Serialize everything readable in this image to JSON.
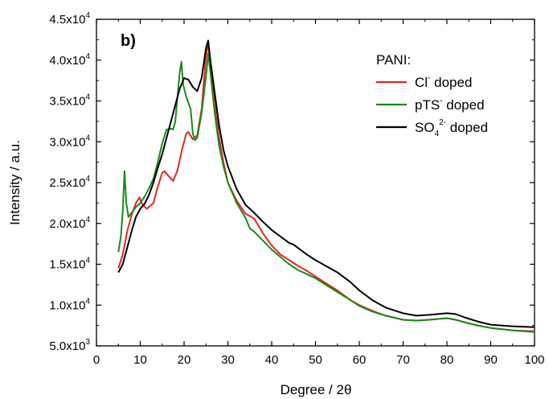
{
  "chart_data": {
    "type": "line",
    "panel_label": "b)",
    "xlabel": "Degree / 2θ",
    "ylabel": "Intensity / a.u.",
    "xlim": [
      0,
      100
    ],
    "ylim": [
      5000,
      45000
    ],
    "x_ticks": [
      0,
      10,
      20,
      30,
      40,
      50,
      60,
      70,
      80,
      90,
      100
    ],
    "y_ticks": [
      {
        "value": 5000,
        "mantissa": "5.0x10",
        "exp": "3"
      },
      {
        "value": 10000,
        "mantissa": "1.0x10",
        "exp": "4"
      },
      {
        "value": 15000,
        "mantissa": "1.5x10",
        "exp": "4"
      },
      {
        "value": 20000,
        "mantissa": "2.0x10",
        "exp": "4"
      },
      {
        "value": 25000,
        "mantissa": "2.5x10",
        "exp": "4"
      },
      {
        "value": 30000,
        "mantissa": "3.0x10",
        "exp": "4"
      },
      {
        "value": 35000,
        "mantissa": "3.5x10",
        "exp": "4"
      },
      {
        "value": 40000,
        "mantissa": "4.0x10",
        "exp": "4"
      },
      {
        "value": 45000,
        "mantissa": "4.5x10",
        "exp": "4"
      }
    ],
    "grid": false,
    "legend": {
      "title": "PANI:",
      "placement": "top-right",
      "items": [
        {
          "base": "Cl",
          "sup": "-",
          "sub": "",
          "sup2": "",
          "rest": " doped",
          "color": "#e8251f"
        },
        {
          "base": "pTS",
          "sup": "-",
          "sub": "",
          "sup2": "",
          "rest": " doped",
          "color": "#1a8a1a"
        },
        {
          "base": "SO",
          "sup": "",
          "sub": "4",
          "sup2": "2-",
          "rest": " doped",
          "color": "#000000"
        }
      ]
    },
    "series": [
      {
        "name": "Cl- doped",
        "color": "#e8251f",
        "x": [
          5,
          6,
          7,
          8,
          9,
          9.8,
          10.5,
          11.5,
          13,
          14,
          15,
          15.5,
          16.5,
          17.5,
          18.5,
          19.5,
          20.5,
          21,
          22,
          23,
          24,
          25,
          25.5,
          26,
          27,
          28,
          29,
          30,
          32,
          34,
          36,
          38,
          40,
          42,
          44,
          46,
          48,
          50,
          52,
          55,
          58,
          60,
          63,
          66,
          70,
          73,
          76,
          78,
          80,
          82,
          84,
          87,
          90,
          95,
          100
        ],
        "y": [
          14500,
          16200,
          19000,
          21000,
          22500,
          23200,
          22300,
          21800,
          22500,
          24500,
          26200,
          26400,
          25800,
          25200,
          26500,
          29000,
          31000,
          31200,
          30300,
          30800,
          34000,
          40500,
          42000,
          39500,
          34500,
          30500,
          27500,
          25000,
          22800,
          21200,
          20600,
          18800,
          17300,
          16200,
          15500,
          14800,
          14200,
          13500,
          12800,
          11800,
          10600,
          10000,
          9300,
          8700,
          8200,
          8100,
          8200,
          8300,
          8400,
          8200,
          7900,
          7500,
          7200,
          6900,
          6800
        ]
      },
      {
        "name": "pTS- doped",
        "color": "#1a8a1a",
        "x": [
          5,
          5.6,
          6.0,
          6.4,
          6.8,
          7.3,
          8,
          9,
          10,
          11,
          12,
          13,
          14,
          15,
          16,
          17,
          17.5,
          18,
          18.5,
          19,
          19.4,
          19.8,
          20.5,
          21.5,
          22,
          22.5,
          23,
          24,
          25,
          25.5,
          26,
          27,
          28,
          29,
          30,
          32,
          34,
          35,
          36,
          38,
          40,
          42,
          44,
          46,
          48,
          50,
          52,
          55,
          58,
          60,
          63,
          66,
          70,
          73,
          76,
          78,
          80,
          82,
          84,
          87,
          90,
          95,
          100
        ],
        "y": [
          16500,
          18500,
          21500,
          26400,
          22500,
          20800,
          21300,
          22000,
          22500,
          23300,
          24300,
          25500,
          27500,
          29800,
          31500,
          31600,
          31500,
          32500,
          35500,
          38500,
          39800,
          37000,
          35500,
          34000,
          31000,
          30200,
          30500,
          33500,
          38000,
          40800,
          38500,
          33500,
          29500,
          27000,
          25000,
          22500,
          20700,
          19400,
          19000,
          17900,
          16800,
          15900,
          15000,
          14300,
          13800,
          13300,
          12600,
          11600,
          10600,
          9900,
          9200,
          8700,
          8200,
          8100,
          8200,
          8300,
          8400,
          8200,
          7900,
          7500,
          7200,
          6900,
          6700
        ]
      },
      {
        "name": "SO4 2- doped",
        "color": "#000000",
        "x": [
          5,
          6,
          7,
          8,
          9,
          10,
          11,
          12,
          13,
          14,
          15,
          16,
          17,
          18,
          19,
          20,
          21,
          22,
          23,
          24,
          25,
          25.5,
          26,
          27,
          28,
          29,
          30,
          32,
          34,
          36,
          38,
          40,
          42,
          44,
          45,
          46,
          48,
          50,
          52,
          55,
          58,
          60,
          63,
          66,
          70,
          73,
          76,
          78,
          80,
          82,
          84,
          87,
          90,
          95,
          100
        ],
        "y": [
          14000,
          15000,
          17000,
          19000,
          20800,
          21800,
          22400,
          23500,
          25000,
          26800,
          28500,
          30500,
          32500,
          34500,
          36500,
          37800,
          37600,
          36700,
          36200,
          37800,
          41500,
          42400,
          40000,
          36000,
          32000,
          29000,
          27000,
          24200,
          22300,
          21300,
          20200,
          19200,
          18400,
          17600,
          17400,
          17000,
          16200,
          15500,
          14900,
          14000,
          12800,
          11800,
          10600,
          9700,
          9000,
          8700,
          8800,
          8900,
          9000,
          8900,
          8500,
          8000,
          7600,
          7400,
          7300
        ]
      }
    ]
  }
}
